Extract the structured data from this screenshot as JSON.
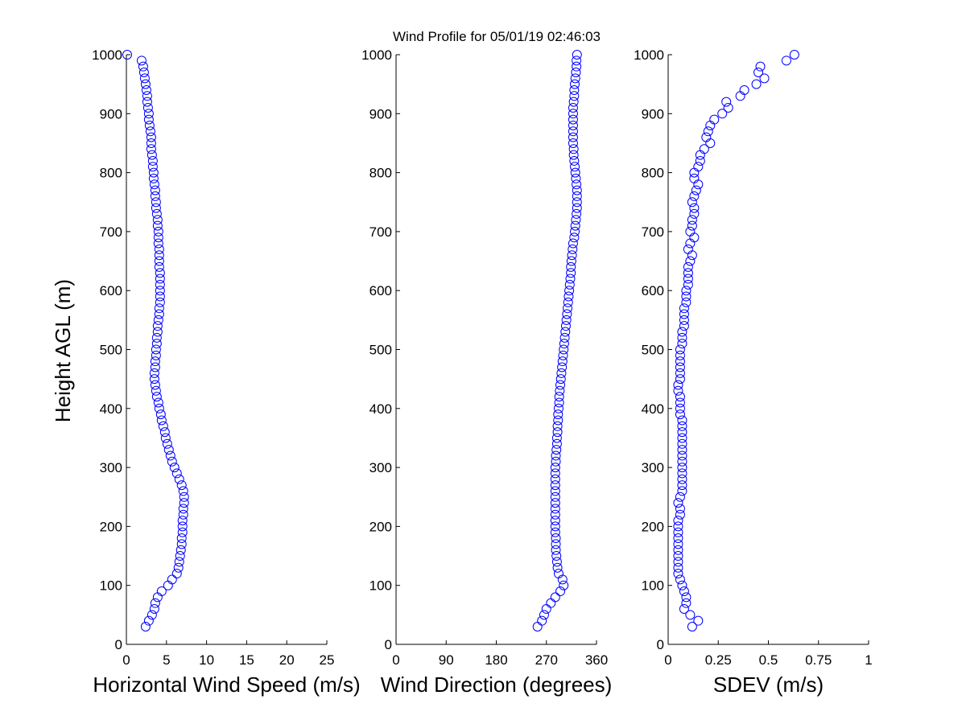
{
  "chart_data": {
    "title": "Wind Profile for  05/01/19 02:46:03",
    "ylabel": "Height AGL (m)",
    "ylim": [
      0,
      1000
    ],
    "yticks": [
      0,
      100,
      200,
      300,
      400,
      500,
      600,
      700,
      800,
      900,
      1000
    ],
    "marker_color": "#0000ff",
    "marker": "open-circle",
    "grid": false,
    "heights": [
      30,
      40,
      50,
      60,
      70,
      80,
      90,
      100,
      110,
      120,
      130,
      140,
      150,
      160,
      170,
      180,
      190,
      200,
      210,
      220,
      230,
      240,
      250,
      260,
      270,
      280,
      290,
      300,
      310,
      320,
      330,
      340,
      350,
      360,
      370,
      380,
      390,
      400,
      410,
      420,
      430,
      440,
      450,
      460,
      470,
      480,
      490,
      500,
      510,
      520,
      530,
      540,
      550,
      560,
      570,
      580,
      590,
      600,
      610,
      620,
      630,
      640,
      650,
      660,
      670,
      680,
      690,
      700,
      710,
      720,
      730,
      740,
      750,
      760,
      770,
      780,
      790,
      800,
      810,
      820,
      830,
      840,
      850,
      860,
      870,
      880,
      890,
      900,
      910,
      920,
      930,
      940,
      950,
      960,
      970,
      980,
      990,
      1000
    ],
    "panels": [
      {
        "type": "scatter",
        "xlabel": "Horizontal Wind Speed (m/s)",
        "xlim": [
          0,
          25
        ],
        "xticks": [
          "0",
          "5",
          "10",
          "15",
          "20",
          "25"
        ],
        "values": [
          2.4,
          2.8,
          3.2,
          3.5,
          3.6,
          3.9,
          4.4,
          5.2,
          5.7,
          6.3,
          6.5,
          6.6,
          6.7,
          6.8,
          6.9,
          6.9,
          7.0,
          7.0,
          7.0,
          7.1,
          7.1,
          7.2,
          7.2,
          7.1,
          6.9,
          6.6,
          6.3,
          6.0,
          5.7,
          5.5,
          5.3,
          5.1,
          4.9,
          4.8,
          4.6,
          4.4,
          4.3,
          4.1,
          4.0,
          3.8,
          3.7,
          3.6,
          3.5,
          3.5,
          3.6,
          3.6,
          3.7,
          3.7,
          3.8,
          3.8,
          3.9,
          3.9,
          4.0,
          4.1,
          4.1,
          4.2,
          4.2,
          4.2,
          4.2,
          4.2,
          4.2,
          4.1,
          4.1,
          4.1,
          4.1,
          4.0,
          4.0,
          4.0,
          3.9,
          3.9,
          3.8,
          3.7,
          3.7,
          3.6,
          3.6,
          3.5,
          3.4,
          3.4,
          3.3,
          3.3,
          3.2,
          3.1,
          3.1,
          3.1,
          3.0,
          2.9,
          2.8,
          2.8,
          2.7,
          2.6,
          2.6,
          2.5,
          2.4,
          2.3,
          2.2,
          2.1,
          1.9,
          0.1
        ]
      },
      {
        "type": "scatter",
        "xlabel": "Wind Direction (degrees)",
        "xlim": [
          0,
          360
        ],
        "xticks": [
          "0",
          "90",
          "180",
          "270",
          "360"
        ],
        "values": [
          254,
          262,
          266,
          270,
          278,
          286,
          295,
          301,
          299,
          292,
          290,
          289,
          288,
          287,
          287,
          287,
          286,
          286,
          286,
          286,
          286,
          286,
          286,
          286,
          286,
          286,
          286,
          286,
          287,
          287,
          288,
          289,
          289,
          290,
          290,
          291,
          291,
          292,
          293,
          293,
          294,
          295,
          296,
          297,
          298,
          299,
          300,
          301,
          302,
          303,
          304,
          305,
          306,
          307,
          308,
          309,
          310,
          311,
          312,
          313,
          314,
          314,
          315,
          316,
          317,
          318,
          320,
          321,
          322,
          323,
          324,
          325,
          325,
          325,
          325,
          324,
          323,
          322,
          321,
          320,
          319,
          319,
          318,
          318,
          318,
          318,
          318,
          318,
          318,
          319,
          320,
          320,
          321,
          322,
          323,
          324,
          324,
          325
        ]
      },
      {
        "type": "scatter",
        "xlabel": "SDEV  (m/s)",
        "xlim": [
          0,
          1
        ],
        "xticks": [
          "0",
          "0.25",
          "0.5",
          "0.75",
          "1"
        ],
        "values": [
          0.12,
          0.15,
          0.11,
          0.08,
          0.09,
          0.09,
          0.08,
          0.07,
          0.06,
          0.05,
          0.05,
          0.05,
          0.05,
          0.05,
          0.05,
          0.05,
          0.05,
          0.05,
          0.05,
          0.06,
          0.06,
          0.05,
          0.06,
          0.07,
          0.07,
          0.07,
          0.07,
          0.07,
          0.07,
          0.07,
          0.07,
          0.07,
          0.07,
          0.07,
          0.07,
          0.07,
          0.06,
          0.06,
          0.06,
          0.06,
          0.05,
          0.05,
          0.06,
          0.06,
          0.06,
          0.06,
          0.06,
          0.06,
          0.07,
          0.07,
          0.07,
          0.08,
          0.08,
          0.08,
          0.08,
          0.09,
          0.09,
          0.09,
          0.1,
          0.1,
          0.1,
          0.1,
          0.11,
          0.12,
          0.1,
          0.11,
          0.13,
          0.11,
          0.12,
          0.12,
          0.13,
          0.13,
          0.12,
          0.13,
          0.14,
          0.15,
          0.13,
          0.13,
          0.15,
          0.16,
          0.16,
          0.18,
          0.21,
          0.19,
          0.2,
          0.21,
          0.23,
          0.27,
          0.3,
          0.29,
          0.36,
          0.38,
          0.44,
          0.48,
          0.45,
          0.46,
          0.59,
          0.63
        ]
      }
    ]
  }
}
